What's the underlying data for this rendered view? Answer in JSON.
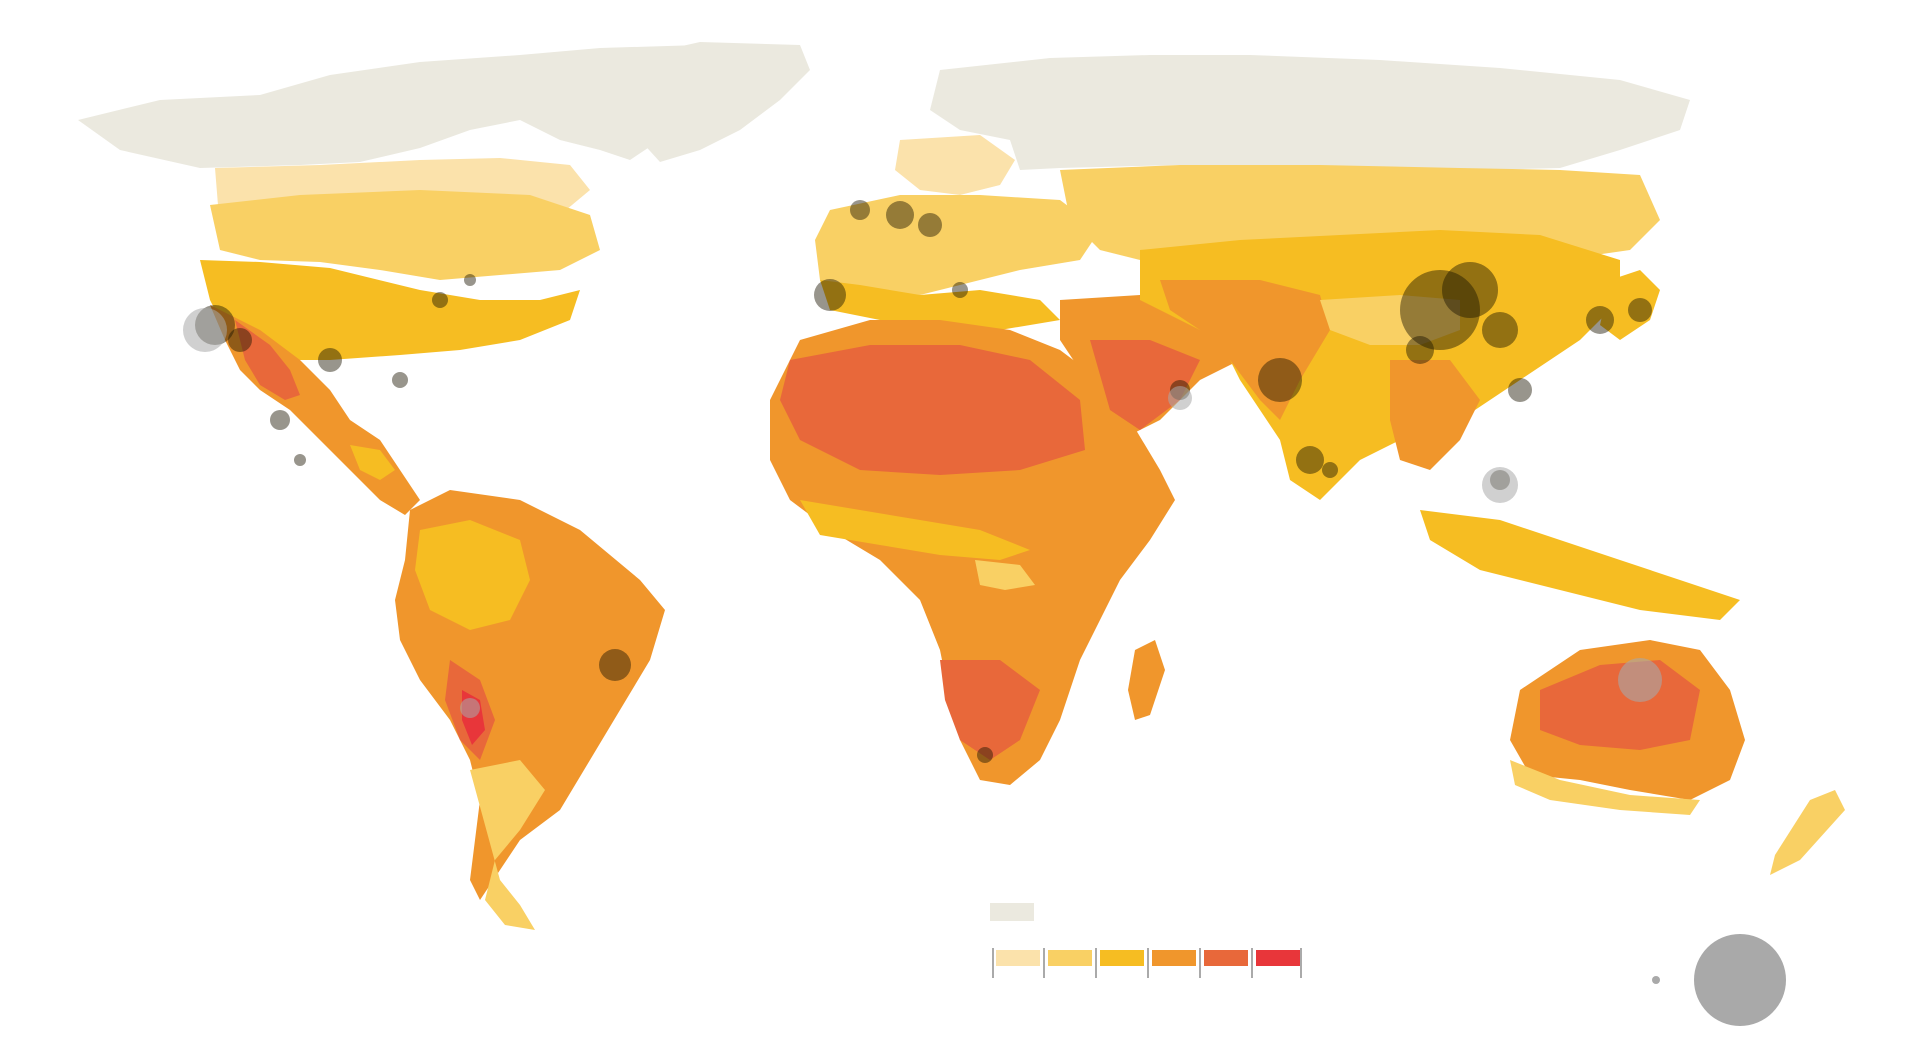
{
  "map": {
    "colors": {
      "no_data": "#ebe9df",
      "ocean": "#ffffff",
      "classes": [
        "#fbe2ab",
        "#f9d064",
        "#f6bd22",
        "#f0962c",
        "#e8683a",
        "#e8363a"
      ],
      "city_fill": "#1a1400",
      "marker_gray": "#a9a9a9"
    },
    "legend": {
      "no_data_swatch": "no-data",
      "class_count": 6,
      "size_legend": [
        "small-city-dot",
        "large-city-circle"
      ]
    }
  }
}
